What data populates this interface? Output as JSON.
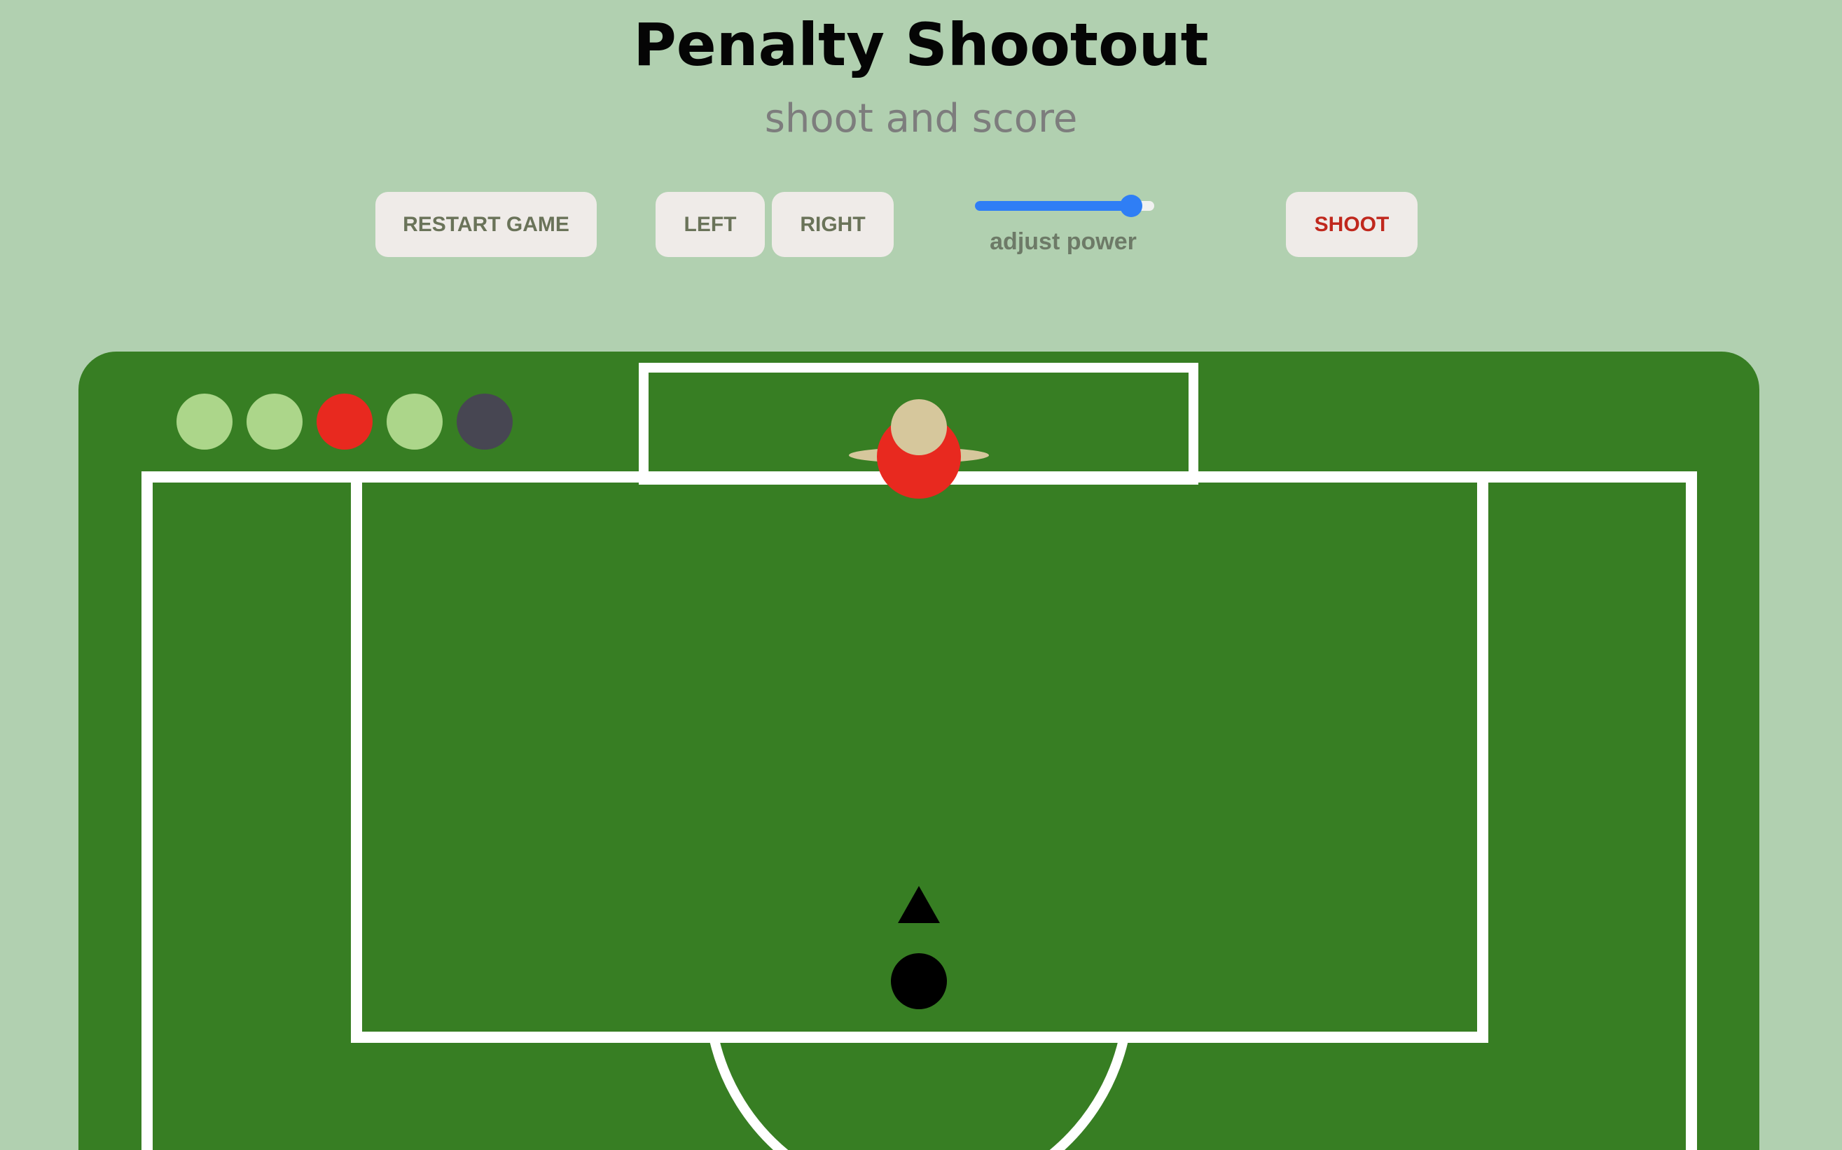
{
  "header": {
    "title": "Penalty Shootout",
    "subtitle": "shoot and score"
  },
  "controls": {
    "restart_label": "RESTART GAME",
    "left_label": "LEFT",
    "right_label": "RIGHT",
    "power_label": "adjust power",
    "power_value": 0.87,
    "shoot_label": "SHOOT"
  },
  "scoreboard": {
    "results": [
      "goal",
      "goal",
      "miss",
      "goal",
      "pending"
    ],
    "colors": {
      "goal": "#acd68a",
      "miss": "#e8291f",
      "pending": "#474652"
    }
  },
  "colors": {
    "background": "#b1d0b0",
    "pitch": "#377e23",
    "lines": "#ffffff",
    "goalkeeper_body": "#e8291f",
    "goalkeeper_head": "#d6c79c",
    "ball": "#000000",
    "slider": "#2f7ef5"
  }
}
